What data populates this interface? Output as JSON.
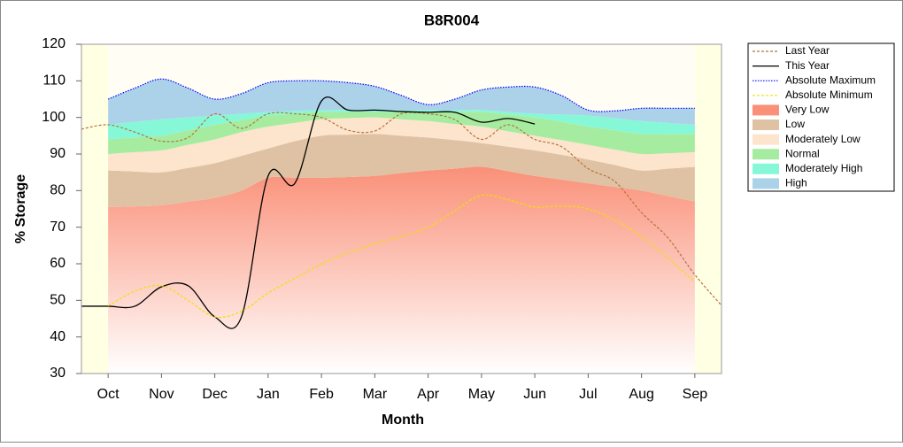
{
  "chart_data": {
    "type": "area-line",
    "title": "B8R004",
    "x_label": "Month",
    "y_label": "% Storage",
    "x": [
      0,
      0.5,
      1,
      1.5,
      2,
      2.5,
      3,
      3.5,
      4,
      4.5,
      5,
      5.5,
      6,
      6.5,
      7,
      7.5,
      8,
      8.5,
      9,
      9.5,
      10,
      10.5,
      11,
      11.5,
      12
    ],
    "xlim": [
      0,
      12
    ],
    "xticks": [
      {
        "value": 0.5,
        "label": "Oct"
      },
      {
        "value": 1.5,
        "label": "Nov"
      },
      {
        "value": 2.5,
        "label": "Dec"
      },
      {
        "value": 3.5,
        "label": "Jan"
      },
      {
        "value": 4.5,
        "label": "Feb"
      },
      {
        "value": 5.5,
        "label": "Mar"
      },
      {
        "value": 6.5,
        "label": "Apr"
      },
      {
        "value": 7.5,
        "label": "May"
      },
      {
        "value": 8.5,
        "label": "Jun"
      },
      {
        "value": 9.5,
        "label": "Jul"
      },
      {
        "value": 10.5,
        "label": "Aug"
      },
      {
        "value": 11.5,
        "label": "Sep"
      }
    ],
    "ylim": [
      30,
      120
    ],
    "yticks": [
      30,
      40,
      50,
      60,
      70,
      80,
      90,
      100,
      110,
      120
    ],
    "grid": false,
    "series": [
      {
        "name": "Last Year",
        "kind": "line",
        "dash": "dashed",
        "color": "#b5733a",
        "values": [
          96.8,
          98,
          96,
          93.5,
          94.5,
          101,
          97,
          101,
          101,
          100,
          96.5,
          96.3,
          101,
          101,
          99.4,
          94,
          98,
          94,
          92,
          86,
          82.5,
          74,
          67,
          57,
          48.6
        ]
      },
      {
        "name": "This Year",
        "kind": "line",
        "dash": "solid",
        "color": "#000000",
        "values": [
          48.4,
          48.4,
          48.4,
          53.7,
          54,
          45.5,
          45.5,
          84,
          82,
          104.5,
          102,
          102,
          101.6,
          101.4,
          101.4,
          98.7,
          99.7,
          98.2,
          null,
          null,
          null,
          null,
          null,
          null,
          null
        ]
      },
      {
        "name": "Absolute Maximum",
        "kind": "line",
        "dash": "dotted",
        "color": "#0000ff",
        "values": [
          null,
          105,
          108,
          110.5,
          108,
          105,
          106.5,
          109.5,
          110,
          110,
          109.5,
          108.5,
          106,
          103.5,
          105,
          107.5,
          108.3,
          108.3,
          106,
          102,
          101.8,
          102.5,
          102.5,
          102.5,
          null
        ]
      },
      {
        "name": "Absolute Minimum",
        "kind": "line",
        "dash": "dashed",
        "color": "#f0e000",
        "values": [
          null,
          48.5,
          52.5,
          54,
          50,
          45.5,
          47,
          52,
          56,
          60,
          63,
          65.5,
          67.5,
          70,
          74.5,
          78.7,
          77.5,
          75.5,
          75.8,
          75,
          72,
          67.5,
          61.5,
          55,
          null
        ]
      },
      {
        "name": "Very Low",
        "kind": "band",
        "color": "#fa9078",
        "values": [
          null,
          75.5,
          75.7,
          76,
          77,
          78,
          80,
          83.5,
          83.5,
          83.5,
          83.7,
          84,
          84.8,
          85.5,
          86,
          86.5,
          85.3,
          84,
          83,
          82,
          81,
          80,
          78.5,
          77,
          null
        ]
      },
      {
        "name": "Low",
        "kind": "band",
        "color": "#dfc2a4",
        "values": [
          null,
          10,
          9.5,
          9,
          9.2,
          9.5,
          9.5,
          8,
          10,
          11.5,
          11.6,
          11.5,
          10.2,
          9,
          7.8,
          6.5,
          6.7,
          7,
          6.8,
          6.5,
          6,
          5.5,
          7.5,
          9.5,
          null
        ]
      },
      {
        "name": "Moderately Low",
        "kind": "band",
        "color": "#fde4cc",
        "values": [
          null,
          4.5,
          5.3,
          6,
          6.3,
          6.5,
          6.5,
          6,
          5,
          4.5,
          4.5,
          4.5,
          4.5,
          4.5,
          4.4,
          4.5,
          4.2,
          4,
          4,
          4,
          4.2,
          4.5,
          4.2,
          4,
          null
        ]
      },
      {
        "name": "Normal",
        "kind": "band",
        "color": "#a6eca0",
        "values": [
          null,
          4,
          4,
          4,
          4,
          4,
          3.3,
          3,
          2.5,
          2,
          1.7,
          1.5,
          2,
          2.5,
          3.3,
          4,
          4.6,
          5,
          5,
          5,
          5.3,
          5.5,
          5.3,
          5,
          null
        ]
      },
      {
        "name": "Moderately High",
        "kind": "band",
        "color": "#86f8d8",
        "values": [
          null,
          4,
          4.3,
          4.5,
          3.5,
          2.5,
          1.7,
          1,
          0.8,
          0.5,
          0.5,
          0.5,
          0.5,
          0.5,
          0.5,
          0.5,
          0.7,
          1,
          2,
          3,
          3.3,
          3.5,
          3,
          2.5,
          null
        ]
      },
      {
        "name": "High",
        "kind": "band",
        "color": "#acd2ea",
        "values": [
          null,
          7,
          9.2,
          11,
          8,
          4.5,
          5.5,
          8,
          8.2,
          8,
          7.5,
          6.5,
          4,
          1.5,
          3,
          5.5,
          6.8,
          7.3,
          5.2,
          1.5,
          2,
          3.5,
          4,
          4.5,
          null
        ]
      }
    ]
  }
}
